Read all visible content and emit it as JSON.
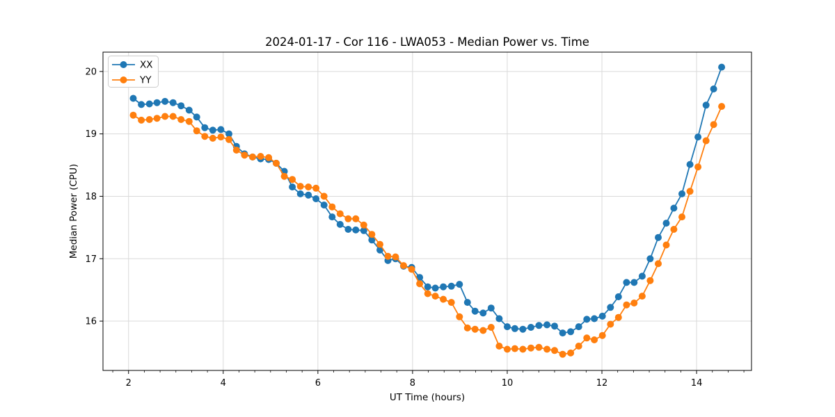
{
  "chart_data": {
    "type": "line",
    "title": "2024-01-17 - Cor 116 - LWA053 - Median Power vs. Time",
    "xlabel": "UT Time (hours)",
    "ylabel": "Median Power (CPU)",
    "xlim": [
      1.46,
      15.16
    ],
    "ylim": [
      15.21,
      20.31
    ],
    "x_major_ticks": [
      2,
      4,
      6,
      8,
      10,
      12,
      14
    ],
    "x_minor_step": 0.33333,
    "y_major_ticks": [
      16,
      17,
      18,
      19,
      20
    ],
    "grid": true,
    "legend_position": "upper-left",
    "background_color": "#ffffff",
    "grid_color": "#d9d9d9",
    "spine_color": "#000000",
    "x": [
      2.1,
      2.27,
      2.44,
      2.6,
      2.77,
      2.94,
      3.11,
      3.28,
      3.44,
      3.61,
      3.78,
      3.95,
      4.12,
      4.28,
      4.45,
      4.62,
      4.79,
      4.96,
      5.12,
      5.29,
      5.46,
      5.63,
      5.8,
      5.96,
      6.13,
      6.3,
      6.47,
      6.64,
      6.8,
      6.97,
      7.14,
      7.31,
      7.48,
      7.64,
      7.81,
      7.98,
      8.15,
      8.32,
      8.48,
      8.65,
      8.82,
      8.99,
      9.16,
      9.32,
      9.49,
      9.66,
      9.83,
      10.0,
      10.16,
      10.33,
      10.5,
      10.67,
      10.84,
      11.0,
      11.17,
      11.34,
      11.51,
      11.68,
      11.84,
      12.01,
      12.18,
      12.35,
      12.52,
      12.68,
      12.85,
      13.02,
      13.19,
      13.36,
      13.52,
      13.69,
      13.86,
      14.03,
      14.2,
      14.36,
      14.53
    ],
    "series": [
      {
        "name": "XX",
        "color": "#1f77b4",
        "values": [
          19.57,
          19.47,
          19.48,
          19.5,
          19.52,
          19.5,
          19.45,
          19.38,
          19.27,
          19.1,
          19.06,
          19.07,
          19.0,
          18.8,
          18.68,
          18.63,
          18.6,
          18.59,
          18.53,
          18.4,
          18.15,
          18.04,
          18.02,
          17.96,
          17.86,
          17.67,
          17.55,
          17.47,
          17.46,
          17.45,
          17.3,
          17.14,
          16.97,
          17.0,
          16.88,
          16.86,
          16.7,
          16.55,
          16.53,
          16.55,
          16.56,
          16.59,
          16.3,
          16.16,
          16.13,
          16.21,
          16.04,
          15.91,
          15.88,
          15.87,
          15.9,
          15.93,
          15.94,
          15.92,
          15.81,
          15.83,
          15.91,
          16.03,
          16.04,
          16.08,
          16.22,
          16.39,
          16.62,
          16.62,
          16.72,
          17.0,
          17.34,
          17.57,
          17.81,
          18.04,
          18.51,
          18.95,
          19.46,
          19.72,
          20.07
        ]
      },
      {
        "name": "YY",
        "color": "#ff7f0e",
        "values": [
          19.3,
          19.22,
          19.23,
          19.25,
          19.28,
          19.28,
          19.23,
          19.2,
          19.05,
          18.96,
          18.93,
          18.95,
          18.91,
          18.74,
          18.66,
          18.63,
          18.64,
          18.62,
          18.53,
          18.32,
          18.27,
          18.16,
          18.15,
          18.13,
          18.0,
          17.83,
          17.72,
          17.64,
          17.64,
          17.54,
          17.39,
          17.23,
          17.04,
          17.03,
          16.89,
          16.83,
          16.6,
          16.44,
          16.4,
          16.35,
          16.3,
          16.07,
          15.89,
          15.87,
          15.85,
          15.9,
          15.6,
          15.55,
          15.56,
          15.55,
          15.57,
          15.58,
          15.55,
          15.53,
          15.47,
          15.49,
          15.6,
          15.73,
          15.7,
          15.77,
          15.95,
          16.06,
          16.26,
          16.29,
          16.4,
          16.65,
          16.92,
          17.22,
          17.47,
          17.67,
          18.08,
          18.47,
          18.89,
          19.15,
          19.44
        ]
      }
    ],
    "legend": {
      "items": [
        {
          "label": "XX",
          "color": "#1f77b4"
        },
        {
          "label": "YY",
          "color": "#ff7f0e"
        }
      ]
    }
  }
}
